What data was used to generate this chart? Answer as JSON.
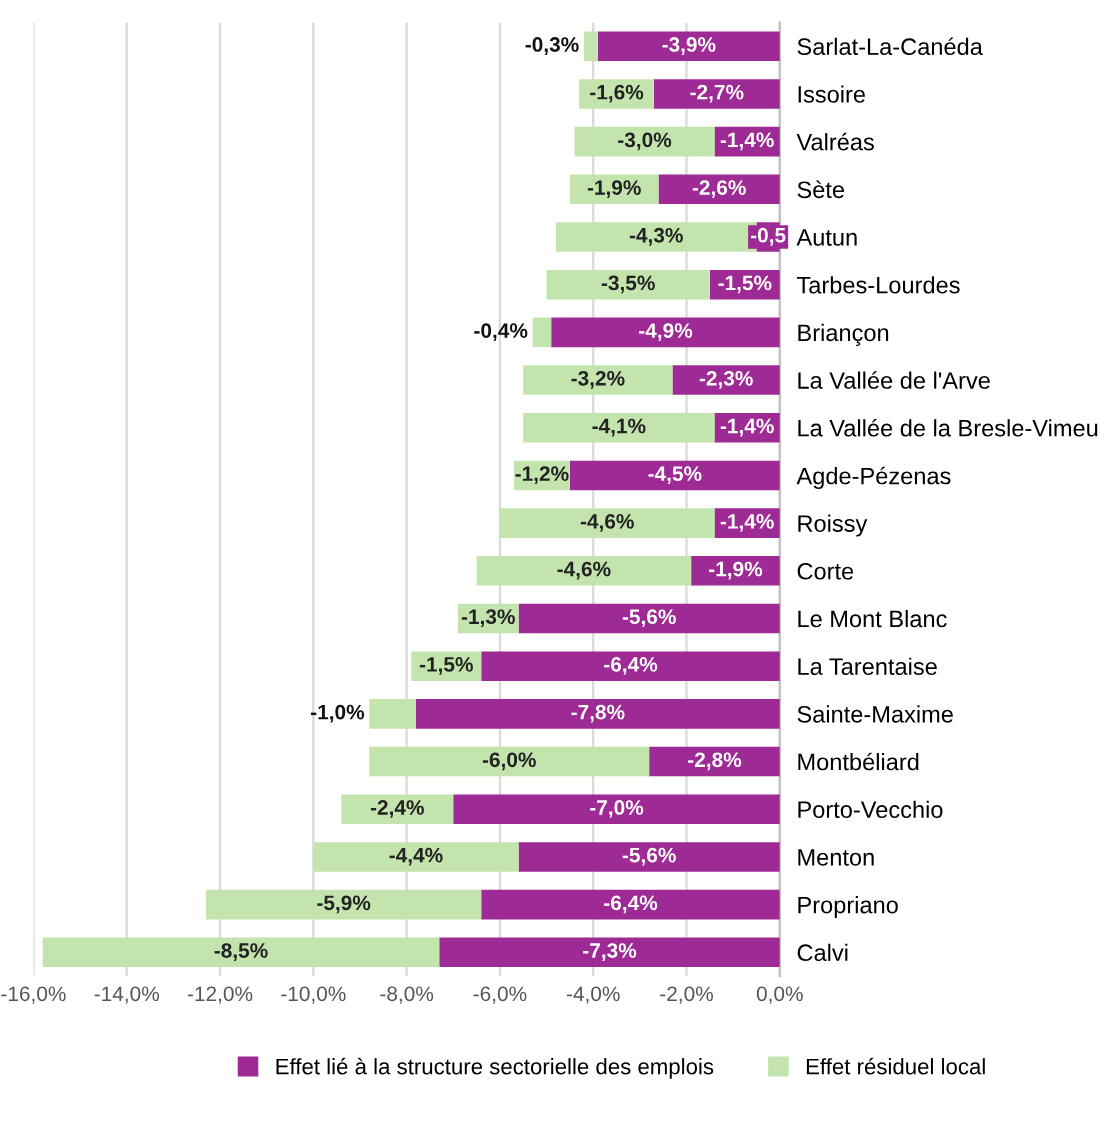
{
  "chart_data": {
    "type": "bar",
    "orientation": "horizontal",
    "stacked": true,
    "categories": [
      "Sarlat-La-Canéda",
      "Issoire",
      "Valréas",
      "Sète",
      "Autun",
      "Tarbes-Lourdes",
      "Briançon",
      "La Vallée de l'Arve",
      "La Vallée de la Bresle-Vimeu",
      "Agde-Pézenas",
      "Roissy",
      "Corte",
      "Le Mont Blanc",
      "La Tarentaise",
      "Sainte-Maxime",
      "Montbéliard",
      "Porto-Vecchio",
      "Menton",
      "Propriano",
      "Calvi"
    ],
    "series": [
      {
        "name": "Effet lié à la structure sectorielle des emplois",
        "color": "#9e2a96",
        "values": [
          -3.9,
          -2.7,
          -1.4,
          -2.6,
          -0.5,
          -1.5,
          -4.9,
          -2.3,
          -1.4,
          -4.5,
          -1.4,
          -1.9,
          -5.6,
          -6.4,
          -7.8,
          -2.8,
          -7.0,
          -5.6,
          -6.4,
          -7.3
        ],
        "value_labels": [
          "-3,9%",
          "-2,7%",
          "-1,4%",
          "-2,6%",
          "-0,5",
          "-1,5%",
          "-4,9%",
          "-2,3%",
          "-1,4%",
          "-4,5%",
          "-1,4%",
          "-1,9%",
          "-5,6%",
          "-6,4%",
          "-7,8%",
          "-2,8%",
          "-7,0%",
          "-5,6%",
          "-6,4%",
          "-7,3%"
        ]
      },
      {
        "name": "Effet résiduel local",
        "color": "#c4e4ad",
        "values": [
          -0.3,
          -1.6,
          -3.0,
          -1.9,
          -4.3,
          -3.5,
          -0.4,
          -3.2,
          -4.1,
          -1.2,
          -4.6,
          -4.6,
          -1.3,
          -1.5,
          -1.0,
          -6.0,
          -2.4,
          -4.4,
          -5.9,
          -8.5
        ],
        "value_labels": [
          "-0,3%",
          "-1,6%",
          "-3,0%",
          "-1,9%",
          "-4,3%",
          "-3,5%",
          "-0,4%",
          "-3,2%",
          "-4,1%",
          "-1,2%",
          "-4,6%",
          "-4,6%",
          "-1,3%",
          "-1,5%",
          "-1,0%",
          "-6,0%",
          "-2,4%",
          "-4,4%",
          "-5,9%",
          "-8,5%"
        ]
      }
    ],
    "xlim": [
      -16,
      0
    ],
    "xticks": [
      {
        "value": -16,
        "label": "-16,0%"
      },
      {
        "value": -14,
        "label": "-14,0%"
      },
      {
        "value": -12,
        "label": "-12,0%"
      },
      {
        "value": -10,
        "label": "-10,0%"
      },
      {
        "value": -8,
        "label": "-8,0%"
      },
      {
        "value": -6,
        "label": "-6,0%"
      },
      {
        "value": -4,
        "label": "-4,0%"
      },
      {
        "value": -2,
        "label": "-2,0%"
      },
      {
        "value": 0,
        "label": "0,0%"
      }
    ],
    "grid": "x",
    "legend": "bottom"
  }
}
